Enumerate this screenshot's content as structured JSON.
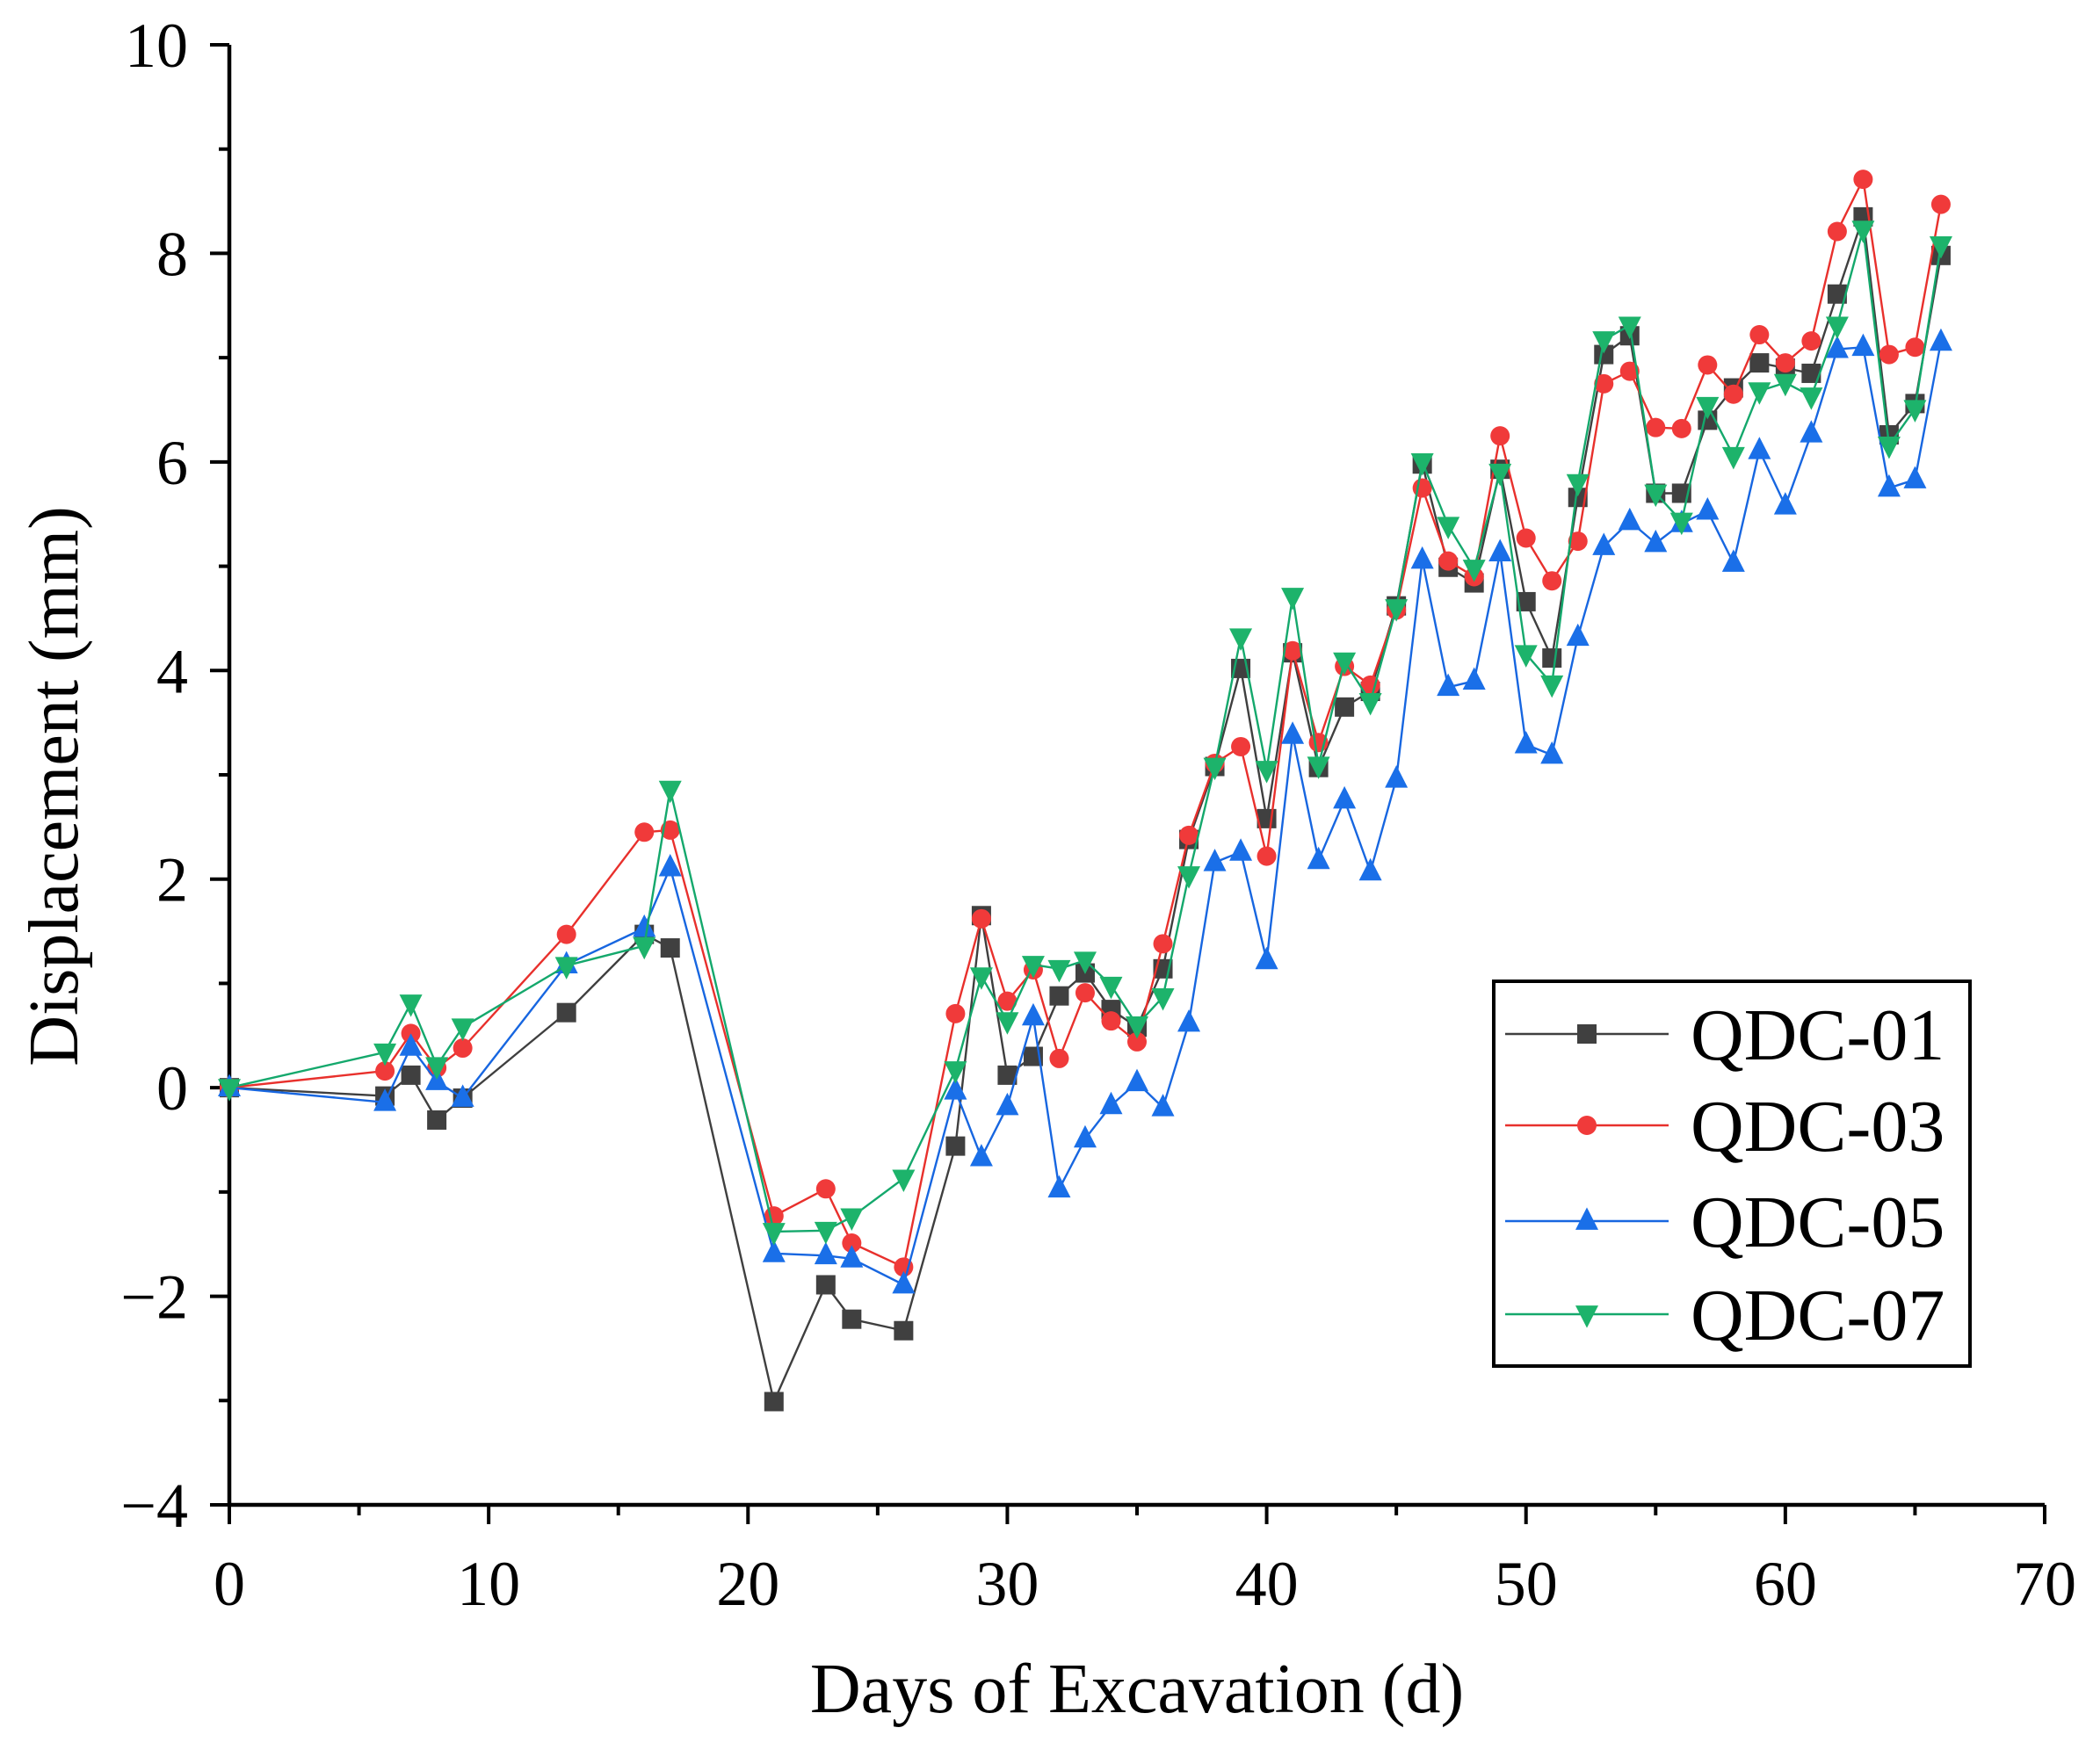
{
  "chart_data": {
    "type": "line",
    "title": "",
    "xlabel": "Days of Excavation (d)",
    "ylabel": "Displacement (mm)",
    "xlim": [
      0,
      70
    ],
    "ylim": [
      -4,
      10
    ],
    "x_ticks": [
      0,
      10,
      20,
      30,
      40,
      50,
      60,
      70
    ],
    "x_tick_labels": [
      "0",
      "10",
      "20",
      "30",
      "40",
      "50",
      "60",
      "70"
    ],
    "x_minor_ticks": [
      5,
      15,
      25,
      35,
      45,
      55,
      65
    ],
    "y_ticks": [
      -4,
      -2,
      0,
      2,
      4,
      6,
      8,
      10
    ],
    "y_tick_labels": [
      "−4",
      "−2",
      "0",
      "2",
      "4",
      "6",
      "8",
      "10"
    ],
    "y_minor_ticks": [
      -3,
      -1,
      1,
      3,
      5,
      7,
      9
    ],
    "grid": false,
    "legend_position": "right",
    "x": [
      0,
      6,
      7,
      8,
      9,
      13,
      16,
      17,
      21,
      23,
      24,
      26,
      28,
      29,
      30,
      31,
      32,
      33,
      34,
      35,
      36,
      37,
      38,
      39,
      40,
      41,
      42,
      43,
      44,
      45,
      46,
      47,
      48,
      49,
      50,
      51,
      52,
      53,
      54,
      55,
      56,
      57,
      58,
      59,
      60,
      61,
      62,
      63,
      64,
      65,
      66
    ],
    "series": [
      {
        "name": "QDC-01",
        "marker": "square",
        "line_color": "#3f3f3f",
        "marker_color": "#404040",
        "values": [
          0,
          -0.08,
          0.12,
          -0.31,
          -0.1,
          0.72,
          1.47,
          1.34,
          -3.01,
          -1.89,
          -2.22,
          -2.33,
          -0.56,
          1.65,
          0.12,
          0.3,
          0.88,
          1.1,
          0.75,
          0.58,
          1.14,
          2.38,
          3.08,
          4.02,
          2.58,
          4.17,
          3.07,
          3.65,
          3.8,
          4.62,
          5.98,
          4.99,
          4.84,
          5.93,
          4.66,
          4.12,
          5.66,
          7.03,
          7.21,
          5.7,
          5.7,
          6.4,
          6.71,
          6.95,
          6.9,
          6.85,
          7.61,
          8.35,
          6.26,
          6.56,
          7.98
        ]
      },
      {
        "name": "QDC-03",
        "marker": "circle",
        "line_color": "#e8302c",
        "marker_color": "#f03a3a",
        "values": [
          0,
          0.16,
          0.52,
          0.19,
          0.38,
          1.47,
          2.45,
          2.47,
          -1.23,
          -0.97,
          -1.49,
          -1.72,
          0.71,
          1.62,
          0.83,
          1.13,
          0.28,
          0.91,
          0.64,
          0.44,
          1.38,
          2.42,
          3.11,
          3.27,
          2.22,
          4.19,
          3.31,
          4.04,
          3.86,
          4.58,
          5.75,
          5.05,
          4.9,
          6.25,
          5.27,
          4.86,
          5.24,
          6.75,
          6.87,
          6.33,
          6.32,
          6.93,
          6.65,
          7.22,
          6.95,
          7.16,
          8.21,
          8.71,
          7.03,
          7.1,
          8.47
        ]
      },
      {
        "name": "QDC-05",
        "marker": "triangle-up",
        "line_color": "#1766e0",
        "marker_color": "#1a6fe8",
        "values": [
          0,
          -0.14,
          0.39,
          0.06,
          -0.1,
          1.18,
          1.53,
          2.11,
          -1.59,
          -1.61,
          -1.64,
          -1.89,
          -0.03,
          -0.67,
          -0.18,
          0.68,
          -0.97,
          -0.49,
          -0.17,
          0.05,
          -0.19,
          0.62,
          2.16,
          2.26,
          1.22,
          3.38,
          2.18,
          2.76,
          2.07,
          2.96,
          5.06,
          3.84,
          3.9,
          5.13,
          3.29,
          3.19,
          4.32,
          5.19,
          5.43,
          5.22,
          5.41,
          5.53,
          5.03,
          6.11,
          5.58,
          6.27,
          7.08,
          7.1,
          5.75,
          5.83,
          7.15
        ]
      },
      {
        "name": "QDC-07",
        "marker": "triangle-down",
        "line_color": "#14a86c",
        "marker_color": "#1db36b",
        "values": [
          0,
          0.34,
          0.81,
          0.21,
          0.58,
          1.17,
          1.36,
          2.86,
          -1.38,
          -1.37,
          -1.24,
          -0.87,
          0.17,
          1.07,
          0.64,
          1.18,
          1.14,
          1.22,
          0.98,
          0.6,
          0.87,
          2.04,
          3.08,
          4.32,
          3.05,
          4.71,
          3.09,
          4.09,
          3.7,
          4.6,
          6.0,
          5.39,
          4.98,
          5.9,
          4.16,
          3.87,
          5.8,
          7.17,
          7.31,
          5.7,
          5.43,
          6.54,
          6.06,
          6.68,
          6.76,
          6.63,
          7.31,
          8.23,
          6.16,
          6.51,
          8.08
        ]
      }
    ]
  }
}
